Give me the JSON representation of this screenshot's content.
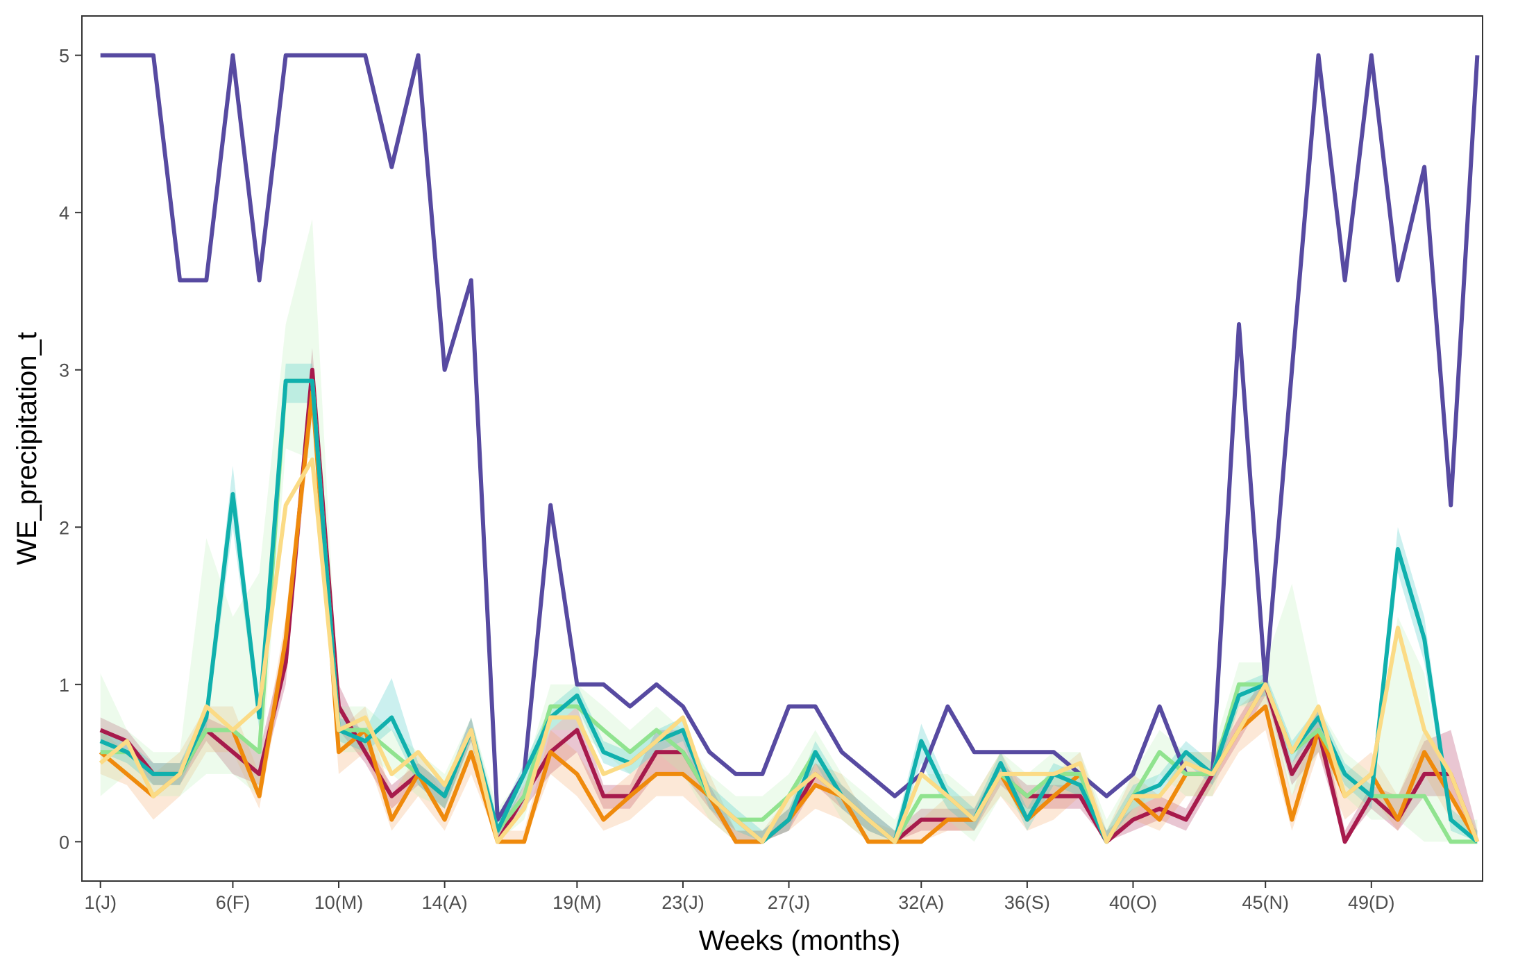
{
  "chart_data": {
    "type": "line",
    "title": "",
    "xlabel": "Weeks (months)",
    "ylabel": "WE_precipitation_t",
    "xlim": [
      0.3,
      53.2
    ],
    "ylim": [
      -0.25,
      5.25
    ],
    "grid": false,
    "legend": "none",
    "x_ticks": [
      {
        "value": 1,
        "label": "1(J)"
      },
      {
        "value": 6,
        "label": "6(F)"
      },
      {
        "value": 10,
        "label": "10(M)"
      },
      {
        "value": 14,
        "label": "14(A)"
      },
      {
        "value": 19,
        "label": "19(M)"
      },
      {
        "value": 23,
        "label": "23(J)"
      },
      {
        "value": 27,
        "label": "27(J)"
      },
      {
        "value": 32,
        "label": "32(A)"
      },
      {
        "value": 36,
        "label": "36(S)"
      },
      {
        "value": 40,
        "label": "40(O)"
      },
      {
        "value": 45,
        "label": "45(N)"
      },
      {
        "value": 49,
        "label": "49(D)"
      }
    ],
    "y_ticks": [
      {
        "value": 0,
        "label": "0"
      },
      {
        "value": 1,
        "label": "1"
      },
      {
        "value": 2,
        "label": "2"
      },
      {
        "value": 3,
        "label": "3"
      },
      {
        "value": 4,
        "label": "4"
      },
      {
        "value": 5,
        "label": "5"
      }
    ],
    "x": [
      1,
      2,
      3,
      4,
      5,
      6,
      7,
      8,
      9,
      10,
      11,
      12,
      13,
      14,
      15,
      16,
      17,
      18,
      19,
      20,
      21,
      22,
      23,
      24,
      25,
      26,
      27,
      28,
      29,
      30,
      31,
      32,
      33,
      34,
      35,
      36,
      37,
      38,
      39,
      40,
      41,
      42,
      43,
      44,
      45,
      46,
      47,
      48,
      49,
      50,
      51,
      52,
      53
    ],
    "series": [
      {
        "color": "#574aa1",
        "values": [
          5,
          5,
          5,
          3.57,
          3.57,
          5,
          3.57,
          5,
          5,
          5,
          5,
          4.29,
          5,
          3,
          3.57,
          0.14,
          0.43,
          2.14,
          1,
          1,
          0.86,
          1,
          0.86,
          0.57,
          0.43,
          0.43,
          0.86,
          0.86,
          0.57,
          0.43,
          0.29,
          0.43,
          0.86,
          0.57,
          0.57,
          0.57,
          0.57,
          0.43,
          0.29,
          0.43,
          0.86,
          0.43,
          0.43,
          3.29,
          1,
          3,
          5,
          3.57,
          5,
          3.57,
          4.29,
          2.14,
          5
        ]
      },
      {
        "color": "#a71a4c",
        "band_color": "#a71a4c",
        "values": [
          0.71,
          0.64,
          0.43,
          0.43,
          0.71,
          0.57,
          0.43,
          1.14,
          3,
          0.86,
          0.57,
          0.29,
          0.43,
          0.29,
          0.71,
          0,
          0.29,
          0.57,
          0.71,
          0.29,
          0.29,
          0.57,
          0.57,
          0.29,
          0,
          0,
          0.14,
          0.43,
          0.29,
          0.14,
          0,
          0.14,
          0.14,
          0.14,
          0.43,
          0.29,
          0.29,
          0.29,
          0,
          0.14,
          0.21,
          0.14,
          0.43,
          0.71,
          1,
          0.43,
          0.71,
          0,
          0.29,
          0.14,
          0.43,
          0.43,
          0
        ],
        "lower": [
          0.64,
          0.57,
          0.36,
          0.36,
          0.64,
          0.43,
          0.36,
          1,
          2.8,
          0.71,
          0.5,
          0.21,
          0.36,
          0.21,
          0.64,
          0,
          0.21,
          0.43,
          0.57,
          0.21,
          0.21,
          0.43,
          0.43,
          0.21,
          0,
          0,
          0.07,
          0.36,
          0.21,
          0.07,
          0,
          0.07,
          0.07,
          0.07,
          0.36,
          0.21,
          0.21,
          0.21,
          0,
          0.07,
          0.14,
          0.07,
          0.36,
          0.64,
          0.93,
          0.36,
          0.57,
          0,
          0.21,
          0.07,
          0.29,
          0.29,
          0
        ],
        "upper": [
          0.79,
          0.71,
          0.5,
          0.5,
          0.79,
          0.71,
          0.57,
          1.29,
          3.14,
          1,
          0.64,
          0.36,
          0.5,
          0.36,
          0.79,
          0.07,
          0.36,
          0.71,
          0.86,
          0.36,
          0.36,
          0.71,
          0.71,
          0.36,
          0.07,
          0.07,
          0.21,
          0.5,
          0.36,
          0.21,
          0.07,
          0.21,
          0.21,
          0.21,
          0.5,
          0.36,
          0.36,
          0.36,
          0.07,
          0.21,
          0.29,
          0.21,
          0.5,
          0.79,
          1.07,
          0.5,
          0.86,
          0.07,
          0.36,
          0.29,
          0.64,
          0.71,
          0.07
        ]
      },
      {
        "color": "#ef8a0c",
        "band_color": "#f4a261",
        "values": [
          0.57,
          0.43,
          0.29,
          0.43,
          0.71,
          0.71,
          0.29,
          1.29,
          2.86,
          0.57,
          0.71,
          0.14,
          0.43,
          0.14,
          0.57,
          0,
          0,
          0.57,
          0.43,
          0.14,
          0.29,
          0.43,
          0.43,
          0.29,
          0,
          0,
          0.14,
          0.36,
          0.29,
          0,
          0,
          0,
          0.14,
          0.14,
          0.43,
          0.14,
          0.29,
          0.43,
          0,
          0.29,
          0.14,
          0.43,
          0.43,
          0.71,
          0.86,
          0.14,
          0.71,
          0.29,
          0.43,
          0.14,
          0.57,
          0.29,
          0
        ],
        "lower": [
          0.43,
          0.36,
          0.14,
          0.29,
          0.57,
          0.57,
          0.21,
          1.14,
          2.71,
          0.43,
          0.57,
          0.07,
          0.29,
          0.07,
          0.43,
          0,
          0,
          0.43,
          0.29,
          0.07,
          0.14,
          0.29,
          0.29,
          0.14,
          0,
          0,
          0.07,
          0.21,
          0.14,
          0,
          0,
          0,
          0.07,
          0.07,
          0.29,
          0.07,
          0.14,
          0.29,
          0,
          0.14,
          0.07,
          0.29,
          0.29,
          0.57,
          0.71,
          0.07,
          0.57,
          0.14,
          0.29,
          0.07,
          0.43,
          0.14,
          0
        ],
        "upper": [
          0.71,
          0.57,
          0.43,
          0.57,
          0.86,
          0.86,
          0.43,
          1.43,
          3,
          0.71,
          0.86,
          0.29,
          0.57,
          0.29,
          0.71,
          0.07,
          0.07,
          0.71,
          0.57,
          0.29,
          0.43,
          0.57,
          0.57,
          0.43,
          0.07,
          0.07,
          0.29,
          0.5,
          0.43,
          0.14,
          0.07,
          0.14,
          0.29,
          0.29,
          0.57,
          0.29,
          0.43,
          0.57,
          0.07,
          0.43,
          0.29,
          0.57,
          0.57,
          0.86,
          1,
          0.29,
          0.86,
          0.43,
          0.57,
          0.29,
          0.71,
          0.43,
          0.07
        ]
      },
      {
        "color": "#90e38f",
        "band_color": "#b6f0b5",
        "values": [
          0.57,
          0.57,
          0.43,
          0.43,
          0.71,
          0.71,
          0.57,
          2.93,
          2.93,
          0.71,
          0.71,
          0.57,
          0.43,
          0.29,
          0.71,
          0.07,
          0.29,
          0.86,
          0.86,
          0.71,
          0.57,
          0.71,
          0.57,
          0.29,
          0.14,
          0.14,
          0.29,
          0.57,
          0.29,
          0.14,
          0,
          0.29,
          0.29,
          0.14,
          0.43,
          0.29,
          0.43,
          0.43,
          0,
          0.29,
          0.57,
          0.43,
          0.43,
          1,
          1,
          0.57,
          0.71,
          0.43,
          0.29,
          0.29,
          0.29,
          0,
          0
        ],
        "lower": [
          0.29,
          0.43,
          0.29,
          0.29,
          0.43,
          0.43,
          0.29,
          2.5,
          2.43,
          0.57,
          0.57,
          0.43,
          0.29,
          0.21,
          0.57,
          0,
          0.14,
          0.71,
          0.71,
          0.57,
          0.43,
          0.57,
          0.43,
          0.14,
          0,
          0,
          0.14,
          0.43,
          0.14,
          0,
          0,
          0.14,
          0.14,
          0,
          0.29,
          0.14,
          0.29,
          0.29,
          0,
          0.14,
          0.43,
          0.29,
          0.29,
          0.86,
          0.86,
          0.29,
          0.57,
          0.29,
          0.14,
          0.14,
          0,
          0,
          0
        ],
        "upper": [
          1.07,
          0.71,
          0.57,
          0.57,
          1.93,
          1.43,
          1.71,
          3.29,
          3.96,
          0.86,
          0.86,
          0.71,
          0.57,
          0.43,
          0.79,
          0.21,
          0.43,
          1,
          1,
          0.86,
          0.71,
          0.86,
          0.71,
          0.43,
          0.29,
          0.29,
          0.43,
          0.71,
          0.43,
          0.29,
          0.14,
          0.43,
          0.43,
          0.29,
          0.57,
          0.43,
          0.57,
          0.57,
          0.14,
          0.43,
          0.71,
          0.57,
          0.57,
          1.14,
          1.14,
          1.64,
          0.86,
          0.57,
          0.43,
          1.43,
          1.07,
          0.14,
          0.14
        ]
      },
      {
        "color": "#10b0ad",
        "band_color": "#31c3c0",
        "values": [
          0.64,
          0.57,
          0.43,
          0.43,
          0.79,
          2.21,
          0.79,
          2.93,
          2.93,
          0.71,
          0.64,
          0.79,
          0.43,
          0.29,
          0.71,
          0.07,
          0.43,
          0.79,
          0.93,
          0.57,
          0.5,
          0.64,
          0.71,
          0.29,
          0.14,
          0,
          0.14,
          0.57,
          0.29,
          0.14,
          0,
          0.64,
          0.29,
          0.14,
          0.5,
          0.14,
          0.43,
          0.36,
          0,
          0.29,
          0.36,
          0.57,
          0.43,
          0.93,
          1,
          0.57,
          0.79,
          0.43,
          0.29,
          1.86,
          1.29,
          0.14,
          0
        ],
        "lower": [
          0.57,
          0.5,
          0.36,
          0.36,
          0.71,
          2,
          0.71,
          2.79,
          2.79,
          0.64,
          0.57,
          0.71,
          0.36,
          0.21,
          0.64,
          0,
          0.36,
          0.71,
          0.86,
          0.5,
          0.43,
          0.57,
          0.64,
          0.21,
          0.07,
          0,
          0.07,
          0.5,
          0.21,
          0.07,
          0,
          0.5,
          0.21,
          0.07,
          0.43,
          0.07,
          0.36,
          0.29,
          0,
          0.21,
          0.29,
          0.5,
          0.36,
          0.86,
          0.93,
          0.5,
          0.71,
          0.36,
          0.21,
          1.71,
          1.14,
          0.07,
          0
        ],
        "upper": [
          0.71,
          0.64,
          0.5,
          0.5,
          0.86,
          2.39,
          0.86,
          3.04,
          3.04,
          0.79,
          0.71,
          1.04,
          0.5,
          0.36,
          0.79,
          0.14,
          0.5,
          0.86,
          1,
          0.64,
          0.57,
          0.71,
          0.79,
          0.36,
          0.21,
          0.07,
          0.21,
          0.64,
          0.36,
          0.21,
          0.07,
          0.75,
          0.36,
          0.21,
          0.57,
          0.21,
          0.5,
          0.43,
          0.07,
          0.36,
          0.43,
          0.64,
          0.5,
          1,
          1.07,
          0.64,
          0.86,
          0.5,
          0.36,
          2,
          1.43,
          0.21,
          0.07
        ]
      },
      {
        "color": "#fbdb85",
        "band_color": "#fde6a6",
        "values": [
          0.5,
          0.64,
          0.29,
          0.43,
          0.86,
          0.71,
          0.86,
          2.14,
          2.43,
          0.71,
          0.79,
          0.43,
          0.57,
          0.36,
          0.71,
          0,
          0.21,
          0.79,
          0.79,
          0.43,
          0.5,
          0.64,
          0.79,
          0.29,
          0.14,
          0,
          0.29,
          0.43,
          0.29,
          0.14,
          0,
          0.43,
          0.29,
          0.14,
          0.43,
          0.43,
          0.43,
          0.5,
          0,
          0.29,
          0.29,
          0.5,
          0.43,
          0.71,
          1,
          0.57,
          0.86,
          0.29,
          0.43,
          1.36,
          0.71,
          0.43,
          0
        ]
      }
    ]
  }
}
